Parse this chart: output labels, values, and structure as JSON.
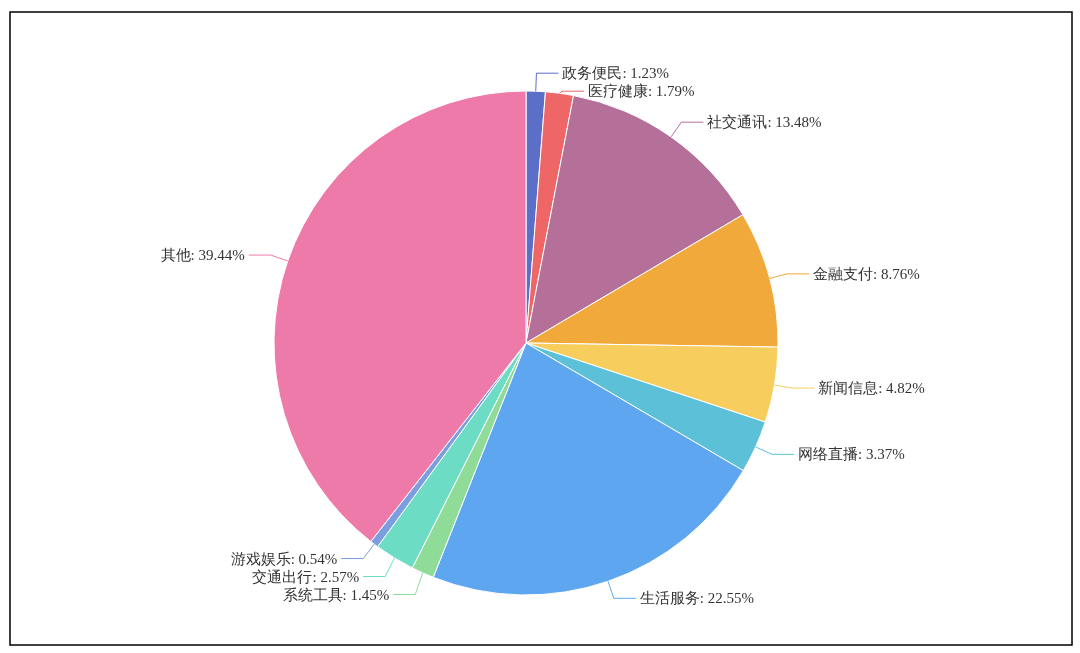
{
  "chart_data": {
    "type": "pie",
    "categories": [
      "政务便民",
      "医疗健康",
      "社交通讯",
      "金融支付",
      "新闻信息",
      "网络直播",
      "生活服务",
      "系统工具",
      "交通出行",
      "游戏娱乐",
      "其他"
    ],
    "values": [
      1.23,
      1.79,
      13.48,
      8.76,
      4.82,
      3.37,
      22.55,
      1.45,
      2.57,
      0.54,
      39.44
    ],
    "colors": [
      "#5b6fc8",
      "#ee6666",
      "#b5709a",
      "#f2a93b",
      "#f7cd5d",
      "#5bc0d8",
      "#5ea7f0",
      "#8fdc98",
      "#6ddcc5",
      "#7b9ee0",
      "#ee7aa9"
    ],
    "value_labels": [
      ": 1.23%",
      ": 1.79%",
      ": 13.48%",
      ": 8.76%",
      ": 4.82%",
      ": 3.37%",
      ": 22.55%",
      ": 1.45%",
      ": 2.57%",
      ": 0.54%",
      ": 39.44%"
    ]
  }
}
